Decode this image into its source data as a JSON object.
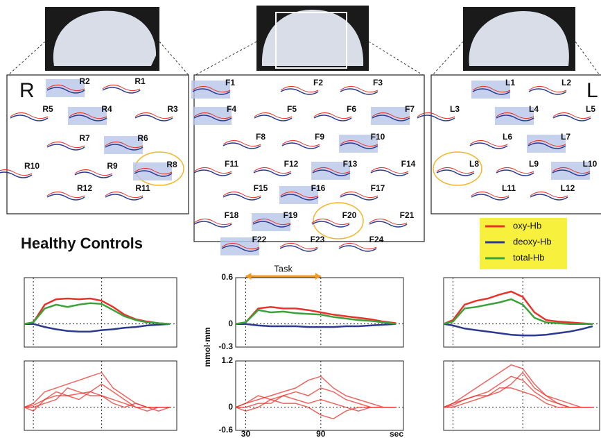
{
  "brain_panels": [
    {
      "side_label": "R",
      "channels": [
        "R2",
        "R1",
        "R5",
        "R4",
        "R3",
        "R7",
        "R6",
        "R10",
        "R9",
        "R8",
        "R12",
        "R11"
      ]
    },
    {
      "channels": [
        "F1",
        "F2",
        "F3",
        "F4",
        "F5",
        "F6",
        "F7",
        "F8",
        "F9",
        "F10",
        "F11",
        "F12",
        "F13",
        "F14",
        "F15",
        "F16",
        "F17",
        "F18",
        "F19",
        "F20",
        "F21",
        "F22",
        "F23",
        "F24"
      ]
    },
    {
      "side_label": "L",
      "channels": [
        "L1",
        "L2",
        "L3",
        "L4",
        "L5",
        "L6",
        "L7",
        "L8",
        "L9",
        "L10",
        "L11",
        "L12"
      ]
    }
  ],
  "group_title": "Healthy Controls",
  "legend": [
    {
      "name": "oxy-Hb",
      "color": "#e8322a"
    },
    {
      "name": "deoxy-Hb",
      "color": "#2b3990"
    },
    {
      "name": "total-Hb",
      "color": "#3aa23a"
    }
  ],
  "plots": {
    "x": [
      22,
      30,
      40,
      50,
      60,
      70,
      80,
      90,
      100,
      110,
      120,
      130,
      140,
      150
    ],
    "xlim": [
      22,
      156
    ],
    "xticks": [
      30,
      90
    ],
    "x_unit": "sec",
    "task_label": "Task",
    "y_label": "mmol·mm",
    "ylim_avg": [
      -0.3,
      0.6
    ],
    "yticks_avg": [
      0.6,
      0,
      -0.3
    ],
    "ylim_ind": [
      -0.6,
      1.2
    ],
    "yticks_ind": [
      1.2,
      0,
      -0.6
    ],
    "avg": [
      [
        [
          0,
          0.02,
          0.25,
          0.32,
          0.33,
          0.32,
          0.33,
          0.3,
          0.22,
          0.12,
          0.06,
          0.03,
          0.01,
          0
        ],
        [
          0,
          0,
          -0.04,
          -0.07,
          -0.09,
          -0.1,
          -0.1,
          -0.08,
          -0.07,
          -0.05,
          -0.04,
          -0.02,
          -0.01,
          0
        ],
        [
          0,
          0.02,
          0.2,
          0.25,
          0.22,
          0.25,
          0.27,
          0.26,
          0.18,
          0.1,
          0.05,
          0.02,
          0.01,
          0
        ]
      ],
      [
        [
          0,
          0.02,
          0.2,
          0.22,
          0.2,
          0.2,
          0.18,
          0.15,
          0.12,
          0.1,
          0.08,
          0.06,
          0.03,
          0.01
        ],
        [
          0,
          0,
          -0.02,
          -0.03,
          -0.03,
          -0.03,
          -0.04,
          -0.04,
          -0.04,
          -0.03,
          -0.03,
          -0.02,
          -0.01,
          0
        ],
        [
          0,
          0.02,
          0.18,
          0.15,
          0.16,
          0.14,
          0.13,
          0.12,
          0.09,
          0.07,
          0.05,
          0.04,
          0.02,
          0
        ]
      ],
      [
        [
          0,
          0.05,
          0.25,
          0.3,
          0.33,
          0.38,
          0.42,
          0.35,
          0.15,
          0.05,
          0.03,
          0.02,
          0.01,
          0
        ],
        [
          0,
          -0.02,
          -0.06,
          -0.08,
          -0.1,
          -0.12,
          -0.14,
          -0.15,
          -0.15,
          -0.14,
          -0.12,
          -0.1,
          -0.07,
          -0.03
        ],
        [
          0,
          0.03,
          0.2,
          0.22,
          0.25,
          0.28,
          0.32,
          0.25,
          0.08,
          0.02,
          0.01,
          0,
          0,
          0
        ]
      ]
    ],
    "individual": [
      [
        [
          0,
          0.1,
          0.4,
          0.5,
          0.6,
          0.7,
          0.8,
          0.9,
          0.5,
          0.3,
          0.1,
          0,
          0,
          0
        ],
        [
          0,
          0.05,
          0.2,
          0.3,
          0.3,
          0.35,
          0.4,
          0.3,
          0.2,
          0.1,
          0,
          -0.1,
          0,
          0
        ],
        [
          0,
          0,
          0.1,
          0.2,
          0.5,
          0.4,
          0.3,
          0.3,
          0.1,
          0,
          0.1,
          0,
          0,
          0
        ],
        [
          0,
          -0.1,
          0.2,
          0.4,
          0.3,
          0.2,
          0.4,
          0.6,
          0.4,
          0.2,
          0,
          0,
          -0.1,
          0
        ]
      ],
      [
        [
          0,
          0.1,
          0.2,
          0.3,
          0.4,
          0.5,
          0.7,
          0.8,
          0.5,
          0.3,
          0.2,
          0.1,
          0,
          0
        ],
        [
          0,
          -0.1,
          0,
          0.2,
          0.3,
          0.2,
          0.1,
          0.2,
          0.1,
          0,
          -0.1,
          0,
          0,
          0
        ],
        [
          0,
          0.1,
          0.3,
          0.2,
          0.1,
          0.1,
          0,
          -0.2,
          -0.3,
          -0.1,
          0,
          0,
          0,
          0
        ],
        [
          0,
          0,
          0.1,
          0.1,
          0.3,
          0.4,
          0.3,
          0.5,
          0.4,
          0.2,
          0.1,
          0,
          0,
          0
        ]
      ],
      [
        [
          0,
          0.1,
          0.3,
          0.5,
          0.7,
          0.9,
          1.1,
          1.0,
          0.6,
          0.3,
          0.1,
          0,
          0,
          0
        ],
        [
          0,
          0.05,
          0.2,
          0.3,
          0.4,
          0.6,
          0.8,
          0.7,
          0.4,
          0.2,
          0.1,
          0,
          0,
          0
        ],
        [
          0,
          0,
          0.1,
          0.2,
          0.3,
          0.4,
          0.6,
          0.9,
          0.5,
          0.3,
          0.2,
          0.1,
          0,
          0
        ],
        [
          0,
          0.1,
          0.2,
          0.3,
          0.3,
          0.5,
          0.5,
          0.4,
          0.3,
          0.1,
          0,
          0,
          0,
          0
        ]
      ]
    ]
  }
}
